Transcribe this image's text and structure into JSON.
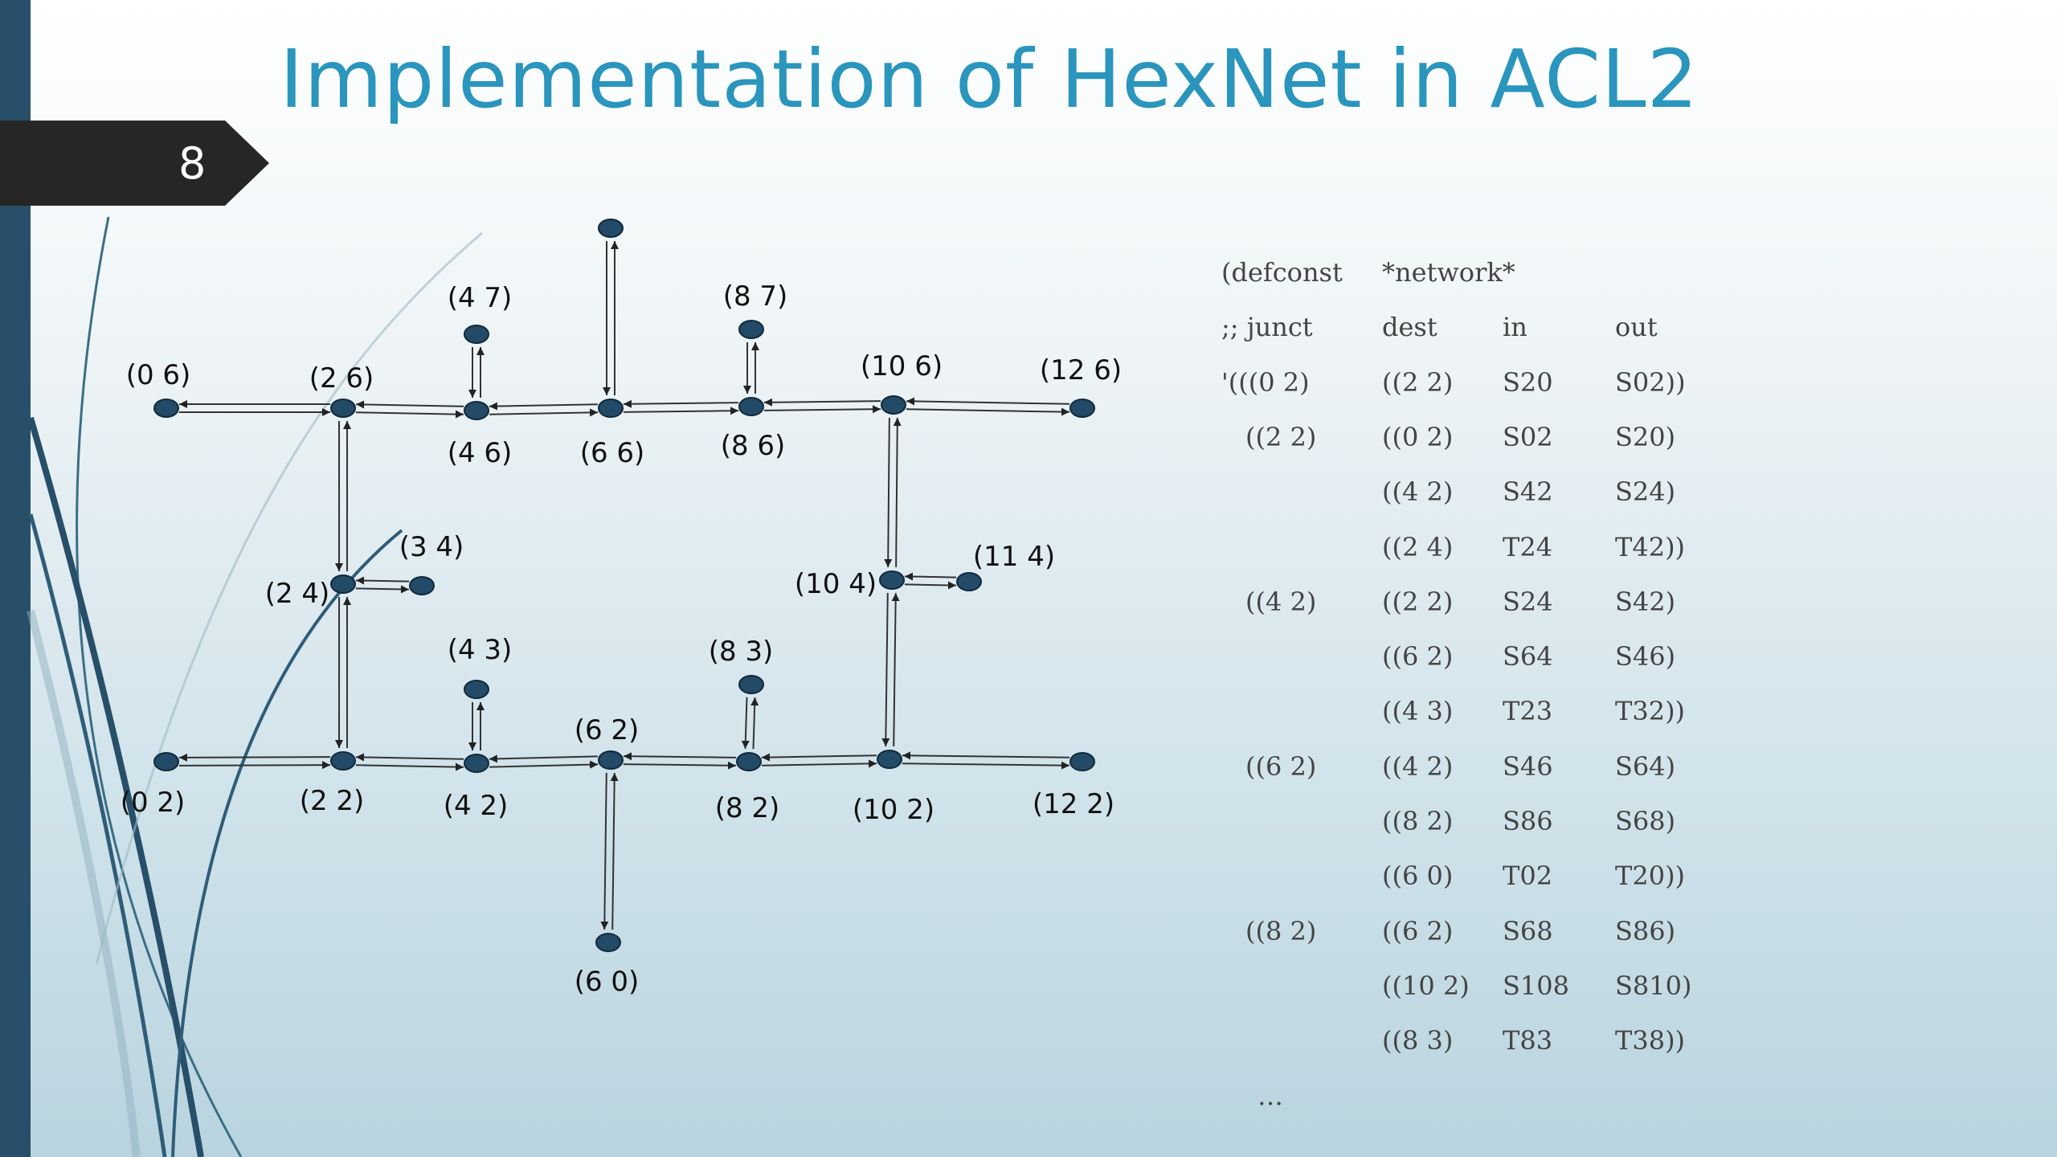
{
  "slide": {
    "title": "Implementation of HexNet in ACL2",
    "number": "8"
  },
  "diagram": {
    "nodes": [
      {
        "id": "n06",
        "label": "(0 6)"
      },
      {
        "id": "n26",
        "label": "(2 6)"
      },
      {
        "id": "n47",
        "label": "(4 7)"
      },
      {
        "id": "n46",
        "label": "(4 6)"
      },
      {
        "id": "n67",
        "label": ""
      },
      {
        "id": "n66",
        "label": "(6 6)"
      },
      {
        "id": "n87",
        "label": "(8 7)"
      },
      {
        "id": "n86",
        "label": "(8 6)"
      },
      {
        "id": "n106",
        "label": "(10 6)"
      },
      {
        "id": "n126",
        "label": "(12 6)"
      },
      {
        "id": "n24",
        "label": "(2 4)"
      },
      {
        "id": "n34",
        "label": "(3 4)"
      },
      {
        "id": "n104",
        "label": "(10 4)"
      },
      {
        "id": "n114",
        "label": "(11 4)"
      },
      {
        "id": "n43",
        "label": "(4 3)"
      },
      {
        "id": "n83",
        "label": "(8 3)"
      },
      {
        "id": "n02",
        "label": "(0 2)"
      },
      {
        "id": "n22",
        "label": "(2 2)"
      },
      {
        "id": "n42",
        "label": "(4 2)"
      },
      {
        "id": "n62",
        "label": "(6 2)"
      },
      {
        "id": "n82",
        "label": "(8 2)"
      },
      {
        "id": "n102",
        "label": "(10 2)"
      },
      {
        "id": "n122",
        "label": "(12 2)"
      },
      {
        "id": "n60",
        "label": "(6 0)"
      }
    ],
    "edges": [
      [
        "n06",
        "n26"
      ],
      [
        "n26",
        "n46"
      ],
      [
        "n46",
        "n66"
      ],
      [
        "n66",
        "n86"
      ],
      [
        "n86",
        "n106"
      ],
      [
        "n106",
        "n126"
      ],
      [
        "n02",
        "n22"
      ],
      [
        "n22",
        "n42"
      ],
      [
        "n42",
        "n62"
      ],
      [
        "n62",
        "n82"
      ],
      [
        "n82",
        "n102"
      ],
      [
        "n102",
        "n122"
      ],
      [
        "n26",
        "n24"
      ],
      [
        "n24",
        "n22"
      ],
      [
        "n24",
        "n34"
      ],
      [
        "n106",
        "n104"
      ],
      [
        "n104",
        "n102"
      ],
      [
        "n104",
        "n114"
      ],
      [
        "n46",
        "n47"
      ],
      [
        "n66",
        "n67"
      ],
      [
        "n86",
        "n87"
      ],
      [
        "n42",
        "n43"
      ],
      [
        "n82",
        "n83"
      ],
      [
        "n62",
        "n60"
      ]
    ]
  },
  "code": {
    "lines": [
      [
        "(defconst",
        "*network*",
        "",
        ""
      ],
      [
        ";; junct",
        "dest",
        "in",
        "out"
      ],
      [
        "'(((0 2)",
        "((2 2)",
        "S20",
        "S02))"
      ],
      [
        "((2 2)",
        "((0 2)",
        "S02",
        "S20)"
      ],
      [
        "",
        "((4 2)",
        "S42",
        "S24)"
      ],
      [
        "",
        "((2 4)",
        "T24",
        "T42))"
      ],
      [
        "((4 2)",
        "((2 2)",
        "S24",
        "S42)"
      ],
      [
        "",
        "((6 2)",
        "S64",
        "S46)"
      ],
      [
        "",
        "((4 3)",
        "T23",
        "T32))"
      ],
      [
        "((6 2)",
        "((4 2)",
        "S46",
        "S64)"
      ],
      [
        "",
        "((8 2)",
        "S86",
        "S68)"
      ],
      [
        "",
        "((6 0)",
        "T02",
        "T20))"
      ],
      [
        "((8 2)",
        "((6 2)",
        "S68",
        "S86)"
      ],
      [
        "",
        "((10 2)",
        "S108",
        "S810)"
      ],
      [
        "",
        "((8 3)",
        "T83",
        "T38))"
      ],
      [
        "…",
        "",
        "",
        ""
      ]
    ]
  }
}
